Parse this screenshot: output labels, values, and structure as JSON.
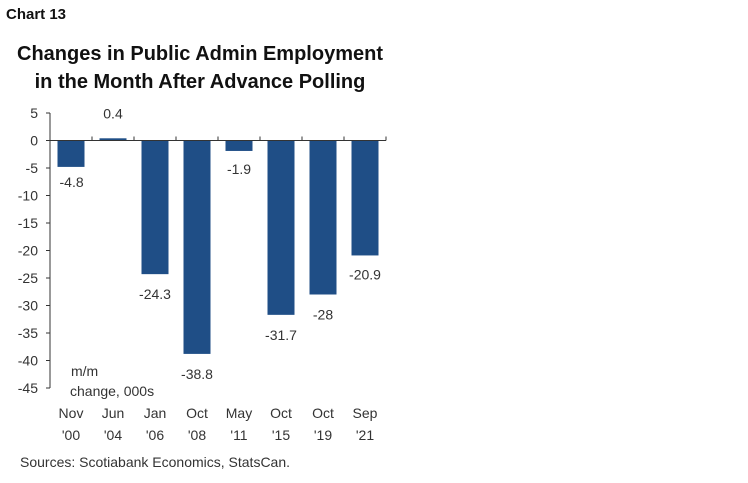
{
  "header": {
    "chart_number": "Chart 13"
  },
  "chart_data": {
    "type": "bar",
    "title_line_1": "Changes in Public Admin Employment",
    "title_line_2": "in the Month After Advance Polling",
    "unit_label_1": "m/m",
    "unit_label_2": "change, 000s",
    "categories": [
      [
        "Nov",
        "'00"
      ],
      [
        "Jun",
        "'04"
      ],
      [
        "Jan",
        "'06"
      ],
      [
        "Oct",
        "'08"
      ],
      [
        "May",
        "'11"
      ],
      [
        "Oct",
        "'15"
      ],
      [
        "Oct",
        "'19"
      ],
      [
        "Sep",
        "'21"
      ]
    ],
    "values": [
      -4.8,
      0.4,
      -24.3,
      -38.8,
      -1.9,
      -31.7,
      -28,
      -20.9
    ],
    "data_labels": [
      "-4.8",
      "0.4",
      "-24.3",
      "-38.8",
      "-1.9",
      "-31.7",
      "-28",
      "-20.9"
    ],
    "ylim": [
      -45,
      5
    ],
    "yticks": [
      5,
      0,
      -5,
      -10,
      -15,
      -20,
      -25,
      -30,
      -35,
      -40,
      -45
    ],
    "grid": false,
    "bar_color": "#1f4e86"
  },
  "footer": {
    "source": "Sources: Scotiabank Economics, StatsCan."
  }
}
